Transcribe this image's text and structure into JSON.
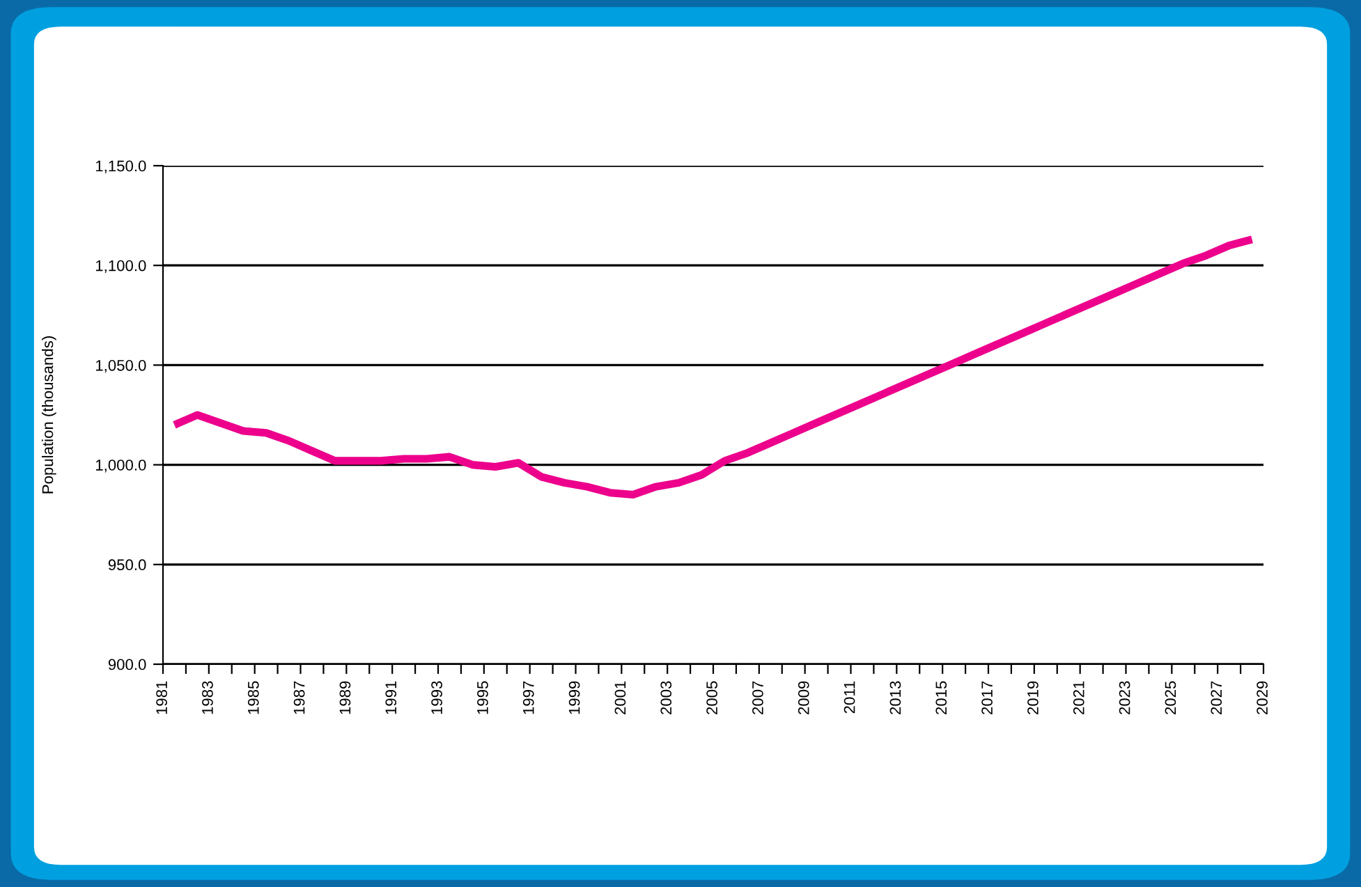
{
  "chart_data": {
    "type": "line",
    "ylabel": "Population (thousands)",
    "x": [
      1981.5,
      1982.5,
      1983.5,
      1984.5,
      1985.5,
      1986.5,
      1987.5,
      1988.5,
      1989.5,
      1990.5,
      1991.5,
      1992.5,
      1993.5,
      1994.5,
      1995.5,
      1996.5,
      1997.5,
      1998.5,
      1999.5,
      2000.5,
      2001.5,
      2002.5,
      2003.5,
      2004.5,
      2005.5,
      2006.5,
      2007.5,
      2008.5,
      2009.5,
      2010.5,
      2011.5,
      2012.5,
      2013.5,
      2014.5,
      2015.5,
      2016.5,
      2017.5,
      2018.5,
      2019.5,
      2020.5,
      2021.5,
      2022.5,
      2023.5,
      2024.5,
      2025.5,
      2026.5,
      2027.5,
      2028.5
    ],
    "series": [
      {
        "color": "#ec008c",
        "values": [
          1020,
          1025,
          1021,
          1017,
          1016,
          1012,
          1007,
          1002,
          1002,
          1002,
          1003,
          1003,
          1004,
          1000,
          999,
          1001,
          994,
          991,
          989,
          986,
          985,
          989,
          991,
          995,
          1002,
          1006,
          1011,
          1016,
          1021,
          1026,
          1031,
          1036,
          1041,
          1046,
          1051,
          1056,
          1061,
          1066,
          1071,
          1076,
          1081,
          1086,
          1091,
          1096,
          1101,
          1105,
          1110,
          1113
        ]
      }
    ],
    "xlim": [
      1981,
      2029
    ],
    "xticks": [
      1981,
      {
        "value": 1982,
        "label": null
      },
      1983,
      {
        "value": 1984,
        "label": null
      },
      1985,
      {
        "value": 1986,
        "label": null
      },
      1987,
      {
        "value": 1988,
        "label": null
      },
      1989,
      {
        "value": 1990,
        "label": null
      },
      1991,
      {
        "value": 1992,
        "label": null
      },
      1993,
      {
        "value": 1994,
        "label": null
      },
      1995,
      {
        "value": 1996,
        "label": null
      },
      1997,
      {
        "value": 1998,
        "label": null
      },
      1999,
      {
        "value": 2000,
        "label": null
      },
      2001,
      {
        "value": 2002,
        "label": null
      },
      2003,
      {
        "value": 2004,
        "label": null
      },
      2005,
      {
        "value": 2006,
        "label": null
      },
      2007,
      {
        "value": 2008,
        "label": null
      },
      2009,
      {
        "value": 2010,
        "label": null
      },
      2011,
      {
        "value": 2012,
        "label": null
      },
      2013,
      {
        "value": 2014,
        "label": null
      },
      2015,
      {
        "value": 2016,
        "label": null
      },
      2017,
      {
        "value": 2018,
        "label": null
      },
      2019,
      {
        "value": 2020,
        "label": null
      },
      2021,
      {
        "value": 2022,
        "label": null
      },
      2023,
      {
        "value": 2024,
        "label": null
      },
      2025,
      {
        "value": 2026,
        "label": null
      },
      2027,
      {
        "value": 2028,
        "label": null
      },
      2029
    ],
    "ylim": [
      900,
      1150
    ],
    "yticks": [
      {
        "value": 900,
        "label": "900.0"
      },
      {
        "value": 950,
        "label": "950.0"
      },
      {
        "value": 1000,
        "label": "1,000.0"
      },
      {
        "value": 1050,
        "label": "1,050.0"
      },
      {
        "value": 1100,
        "label": "1,100.0"
      },
      {
        "value": 1150,
        "label": "1,150.0"
      }
    ],
    "grid": "y",
    "legend": false,
    "marker": "none",
    "line_style": "solid"
  }
}
